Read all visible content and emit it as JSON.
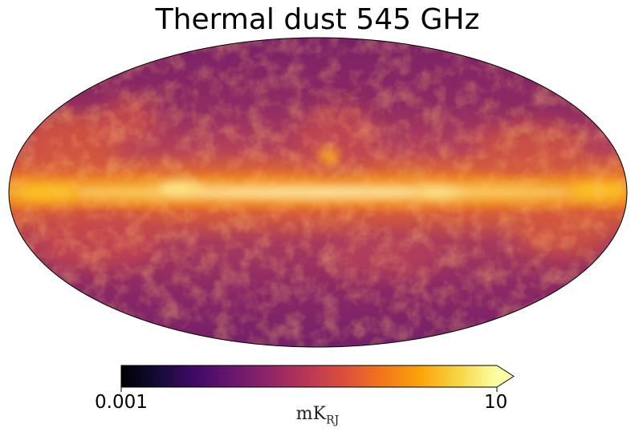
{
  "chart_data": {
    "type": "heatmap",
    "projection": "Mollweide full-sky map",
    "title": "Thermal dust 545 GHz",
    "colormap": "inferno",
    "colorbar": {
      "scale": "log",
      "min": 0.001,
      "max": 10,
      "tick_labels": [
        "0.001",
        "10"
      ],
      "unit_main": "mK",
      "unit_sub": "RJ",
      "extend": "max"
    }
  }
}
